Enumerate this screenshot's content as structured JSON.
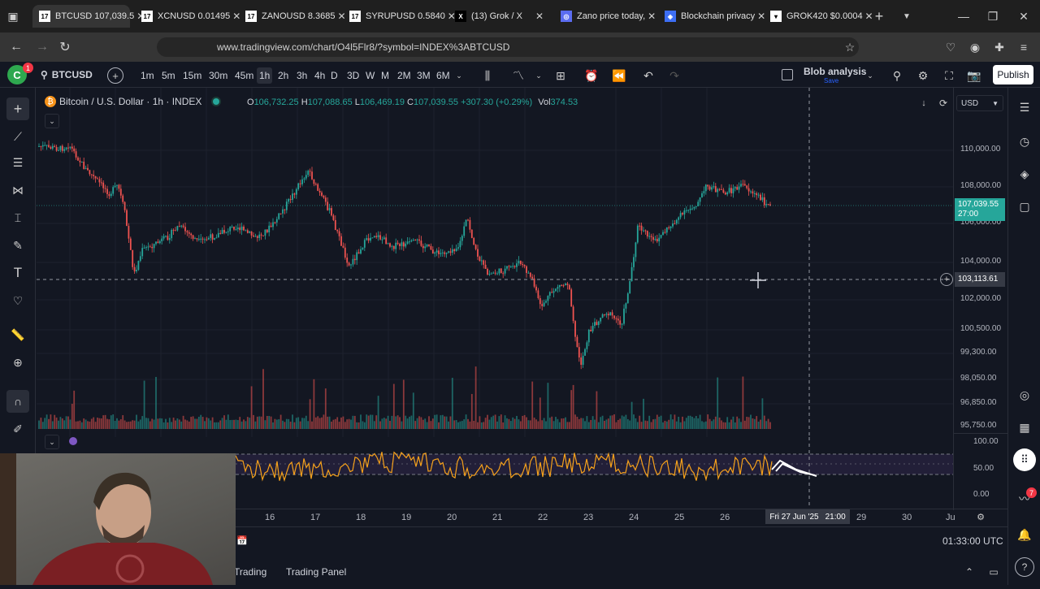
{
  "browser": {
    "tabs": [
      {
        "title": "BTCUSD 107,039.5",
        "icon": "tradingview-icon",
        "active": true
      },
      {
        "title": "XCNUSD 0.01495",
        "icon": "tradingview-icon",
        "active": false
      },
      {
        "title": "ZANOUSD 8.3685",
        "icon": "tradingview-icon",
        "active": false
      },
      {
        "title": "SYRUPUSD 0.5840",
        "icon": "tradingview-icon",
        "active": false
      },
      {
        "title": "(13) Grok / X",
        "icon": "x-icon",
        "active": false
      },
      {
        "title": "Zano price today,",
        "icon": "zano-icon",
        "active": false
      },
      {
        "title": "Blockchain privacy",
        "icon": "blockchain-icon",
        "active": false
      },
      {
        "title": "GROK420 $0.0004",
        "icon": "grok-icon",
        "active": false
      }
    ],
    "url": "www.tradingview.com/chart/O4l5Flr8/?symbol=INDEX%3ABTCUSD"
  },
  "toolbar": {
    "symbol": "BTCUSD",
    "timeframes": [
      "1m",
      "5m",
      "15m",
      "30m",
      "45m",
      "1h",
      "2h",
      "3h",
      "4h",
      "D",
      "3D",
      "W",
      "M",
      "2M",
      "3M",
      "6M"
    ],
    "selected_timeframe": "1h",
    "layout_name": "Blob analysis",
    "layout_status": "Save",
    "publish_label": "Publish"
  },
  "legend": {
    "title": "Bitcoin / U.S. Dollar · 1h · INDEX",
    "o_label": "O",
    "o": "106,732.25",
    "h_label": "H",
    "h": "107,088.65",
    "l_label": "L",
    "l": "106,469.19",
    "c_label": "C",
    "c": "107,039.55",
    "change": "+307.30 (+0.29%)",
    "vol_label": "Vol",
    "vol": "374.53"
  },
  "currency": "USD",
  "price_scale": {
    "labels": [
      "110,000.00",
      "108,000.00",
      "106,000.00",
      "104,000.00",
      "102,000.00",
      "100,500.00",
      "99,300.00",
      "98,050.00",
      "96,850.00",
      "95,750.00"
    ],
    "last_price": "107,039.55",
    "countdown": "27:00",
    "crosshair_price": "103,113.61"
  },
  "rsi_scale": [
    "100.00",
    "50.00",
    "0.00"
  ],
  "time_axis": {
    "labels": [
      "16",
      "17",
      "18",
      "19",
      "20",
      "21",
      "22",
      "23",
      "24",
      "25",
      "26",
      "29",
      "30",
      "Ju"
    ],
    "crosshair_time": "Fri 27 Jun '25",
    "crosshair_hour": "21:00"
  },
  "bottom": {
    "clock": "01:33:00 UTC",
    "tabs": [
      "Trading",
      "Trading Panel"
    ]
  },
  "colors": {
    "up": "#26a69a",
    "down": "#ef5350",
    "rsi": "#f7a21b",
    "last_price_bg": "#26a69a",
    "bg": "#131722"
  },
  "notification_badge": "7"
}
